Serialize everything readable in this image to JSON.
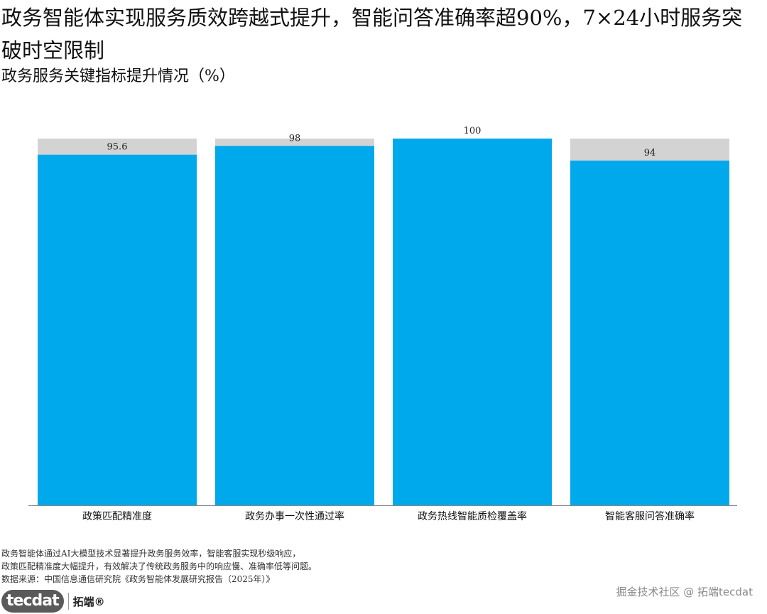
{
  "header": {
    "title": "政务智能体实现服务质效跨越式提升，智能问答准确率超90%，7×24小时服务突破时空限制",
    "subtitle": "政务服务关键指标提升情况（%）"
  },
  "chart_data": {
    "type": "bar",
    "categories": [
      "政策匹配精准度",
      "政务办事一次性通过率",
      "政务热线智能质检覆盖率",
      "智能客服问答准确率"
    ],
    "values": [
      95.6,
      98,
      100,
      94
    ],
    "value_labels": [
      "95.6",
      "98",
      "100",
      "94"
    ],
    "background_max": 100,
    "ylim": [
      0,
      100
    ],
    "grid": false,
    "legend": "none",
    "colors": {
      "bar": "#00A8EC",
      "background": "#D3D3D3",
      "axis": "#888888"
    }
  },
  "notes": {
    "line1": "政务智能体通过AI大模型技术显著提升政务服务效率，智能客服实现秒级响应，",
    "line2": "政策匹配精准度大幅提升，有效解决了传统政务服务中的响应慢、准确率低等问题。",
    "source": "数据来源：中国信息通信研究院《政务智能体发展研究报告（2025年）》"
  },
  "branding": {
    "logo_badge": "tecdat",
    "logo_text": "拓端®",
    "watermark": "掘金技术社区 @ 拓端tecdat"
  }
}
